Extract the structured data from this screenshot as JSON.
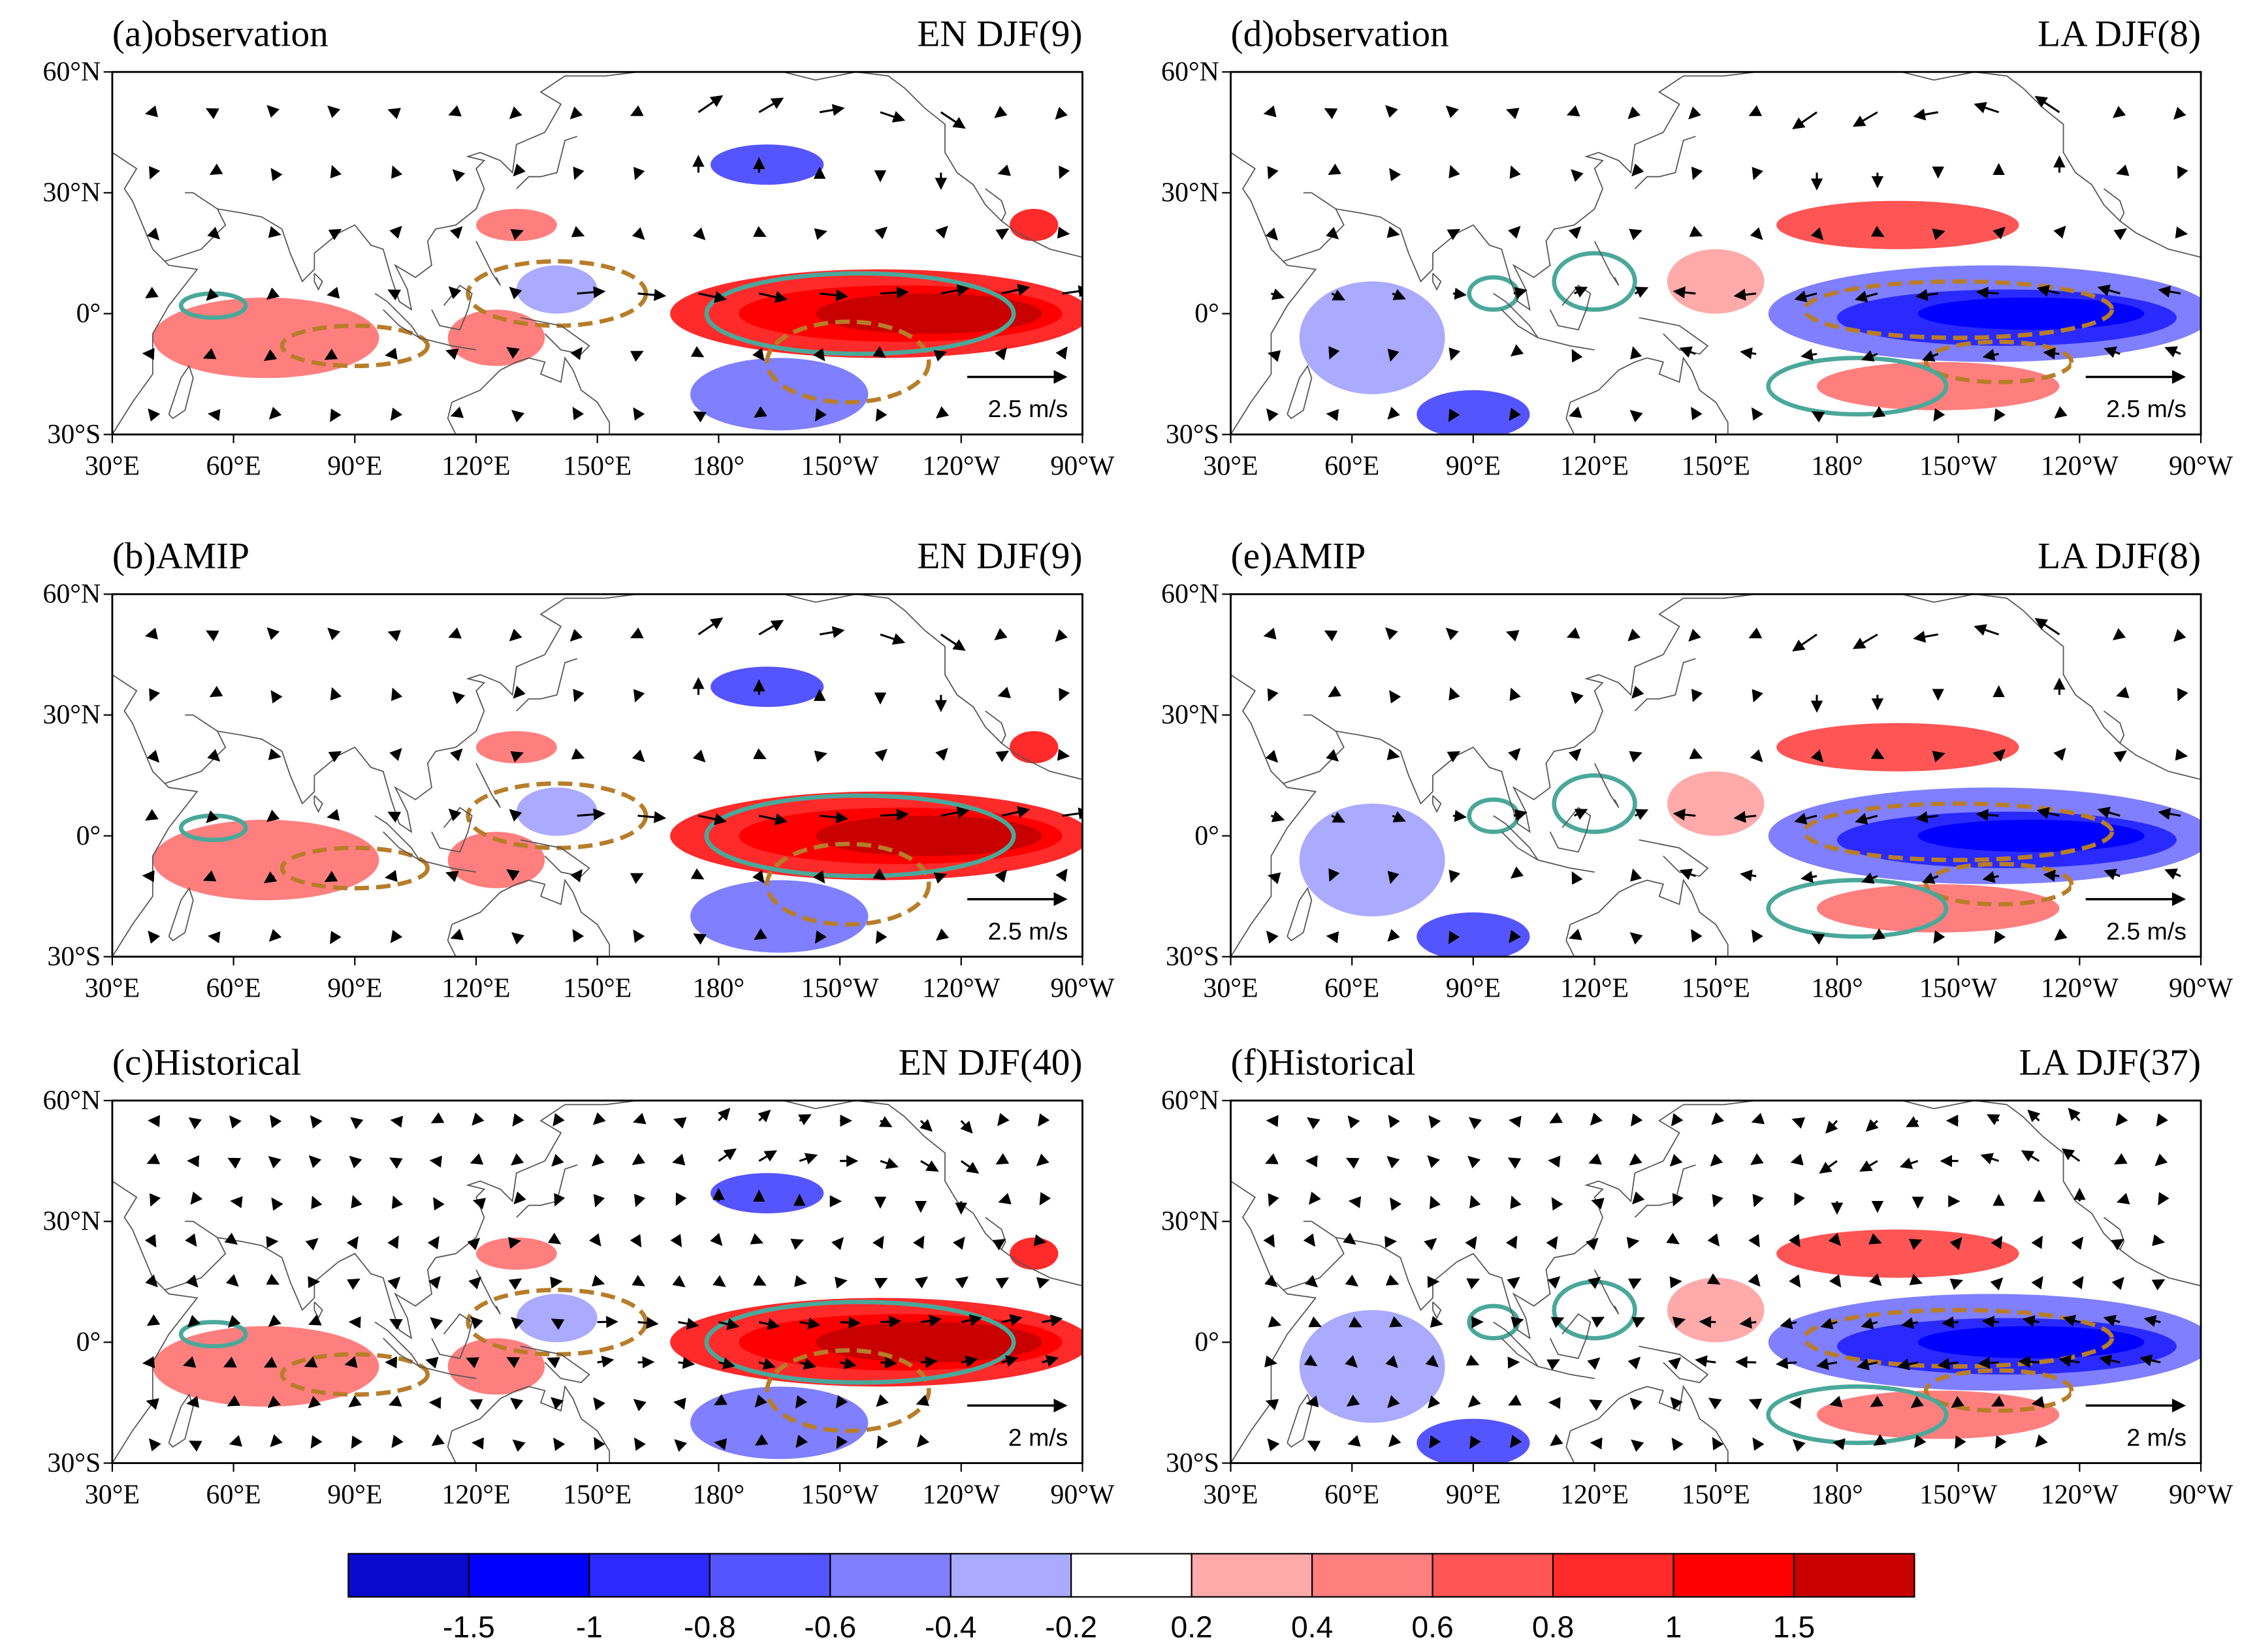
{
  "panels": [
    {
      "label": "(a)observation",
      "case": "EN DJF(9)",
      "ref_vector": "2.5 m/s"
    },
    {
      "label": "(b)AMIP",
      "case": "EN DJF(9)",
      "ref_vector": "2.5 m/s"
    },
    {
      "label": "(c)Historical",
      "case": "EN DJF(40)",
      "ref_vector": "2 m/s"
    },
    {
      "label": "(d)observation",
      "case": "LA DJF(8)",
      "ref_vector": "2.5 m/s"
    },
    {
      "label": "(e)AMIP",
      "case": "LA DJF(8)",
      "ref_vector": "2.5 m/s"
    },
    {
      "label": "(f)Historical",
      "case": "LA DJF(37)",
      "ref_vector": "2 m/s"
    }
  ],
  "lon_ticks": [
    "30°E",
    "60°E",
    "90°E",
    "120°E",
    "150°E",
    "180°",
    "150°W",
    "120°W",
    "90°W"
  ],
  "lat_ticks": [
    "60°N",
    "30°N",
    "0°",
    "30°S"
  ],
  "colorbar": {
    "labels": [
      -1.5,
      -1,
      -0.8,
      -0.6,
      -0.4,
      -0.2,
      0.2,
      0.4,
      0.6,
      0.8,
      1,
      1.5
    ],
    "colors": [
      "#0a0acc",
      "#0000ff",
      "#2a2aff",
      "#5555ff",
      "#7f7fff",
      "#aaaaff",
      "#ffffff",
      "#ffaaaa",
      "#ff7f7f",
      "#ff5555",
      "#ff2a2a",
      "#ff0000",
      "#c80000"
    ]
  }
}
